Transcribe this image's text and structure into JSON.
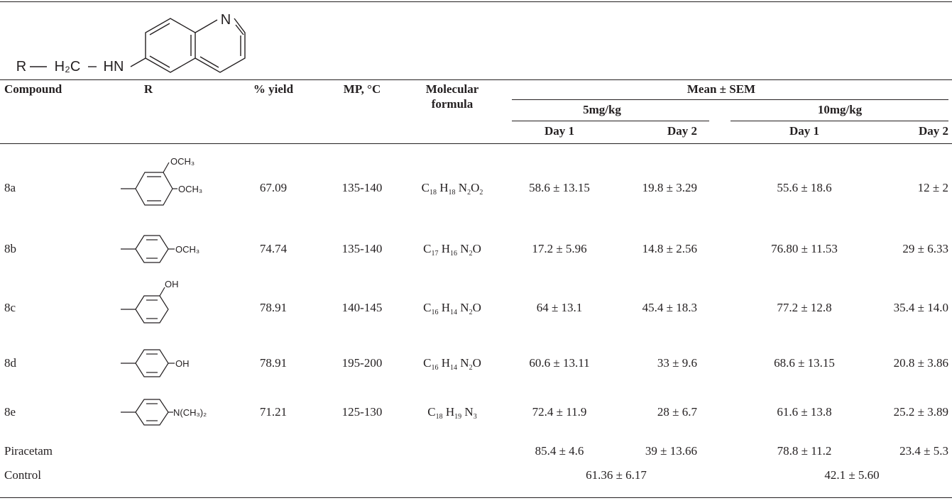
{
  "scaffold": {
    "r_label": "R",
    "h2c_label": "H₂C",
    "hn_label": "HN",
    "n_label": "N"
  },
  "headers": {
    "compound": "Compound",
    "r": "R",
    "yield": "% yield",
    "mp": "MP, °C",
    "formula_line1": "Molecular",
    "formula_line2": "formula",
    "mean_sem": "Mean ± SEM",
    "dose_5": "5mg/kg",
    "dose_10": "10mg/kg",
    "day1_5": "Day 1",
    "day2_5": "Day 2",
    "day1_10": "Day 1",
    "day2_10": "Day 2"
  },
  "substituents": {
    "och3": "OCH₃",
    "oh": "OH",
    "nme2": "N(CH₃)₂"
  },
  "rows": [
    {
      "compound": "8a",
      "yield": "67.09",
      "mp": "135-140",
      "formula": {
        "C": "18",
        "H": "18",
        "N": "2",
        "O": "2"
      },
      "d1_5": "58.6 ± 13.15",
      "d2_5": "19.8 ± 3.29",
      "d1_10": "55.6 ± 18.6",
      "d2_10": "12 ± 2"
    },
    {
      "compound": "8b",
      "yield": "74.74",
      "mp": "135-140",
      "formula": {
        "C": "17",
        "H": "16",
        "N": "2",
        "O": ""
      },
      "d1_5": "17.2 ± 5.96",
      "d2_5": "14.8 ± 2.56",
      "d1_10": "76.80 ± 11.53",
      "d2_10": "29 ± 6.33"
    },
    {
      "compound": "8c",
      "yield": "78.91",
      "mp": "140-145",
      "formula": {
        "C": "16",
        "H": "14",
        "N": "2",
        "O": ""
      },
      "d1_5": "64 ± 13.1",
      "d2_5": "45.4 ± 18.3",
      "d1_10": "77.2 ± 12.8",
      "d2_10": "35.4 ± 14.0"
    },
    {
      "compound": "8d",
      "yield": "78.91",
      "mp": "195-200",
      "formula": {
        "C": "16",
        "H": "14",
        "N": "2",
        "O": ""
      },
      "d1_5": "60.6 ± 13.11",
      "d2_5": "33 ± 9.6",
      "d1_10": "68.6 ± 13.15",
      "d2_10": "20.8 ± 3.86"
    },
    {
      "compound": "8e",
      "yield": "71.21",
      "mp": "125-130",
      "formula": {
        "C": "18",
        "H": "19",
        "N": "3",
        "O": null
      },
      "d1_5": "72.4 ± 11.9",
      "d2_5": "28 ± 6.7",
      "d1_10": "61.6 ± 13.8",
      "d2_10": "25.2 ± 3.89"
    }
  ],
  "piracetam": {
    "compound": "Piracetam",
    "d1_5": "85.4 ± 4.6",
    "d2_5": "39 ± 13.66",
    "d1_10": "78.8 ± 11.2",
    "d2_10": "23.4 ± 5.3"
  },
  "control": {
    "compound": "Control",
    "mean_5": "61.36 ± 6.17",
    "mean_10": "42.1 ± 5.60"
  }
}
